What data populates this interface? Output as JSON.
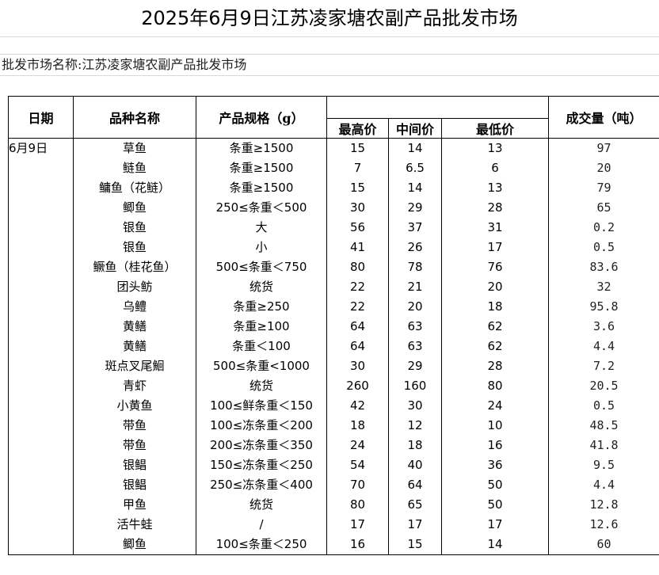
{
  "title": "2025年6月9日江苏凌家塘农副产品批发市场",
  "market_label": "批发市场名称:江苏凌家塘农副产品批发市场",
  "headers": {
    "date": "日期",
    "variety": "品种名称",
    "spec": "产品规格（g）",
    "high": "最高价",
    "mid": "中间价",
    "low": "最低价",
    "volume": "成交量（吨）"
  },
  "rows": [
    {
      "date": "6月9日",
      "name": "草鱼",
      "spec": "条重≥1500",
      "high": "15",
      "mid": "14",
      "low": "13",
      "volume": "97"
    },
    {
      "date": "",
      "name": "鲢鱼",
      "spec": "条重≥1500",
      "high": "7",
      "mid": "6.5",
      "low": "6",
      "volume": "20"
    },
    {
      "date": "",
      "name": "鳙鱼（花鲢）",
      "spec": "条重≥1500",
      "high": "15",
      "mid": "14",
      "low": "13",
      "volume": "79"
    },
    {
      "date": "",
      "name": "鲫鱼",
      "spec": "250≤条重＜500",
      "high": "30",
      "mid": "29",
      "low": "28",
      "volume": "65"
    },
    {
      "date": "",
      "name": "银鱼",
      "spec": "大",
      "high": "56",
      "mid": "37",
      "low": "31",
      "volume": "0.2"
    },
    {
      "date": "",
      "name": "银鱼",
      "spec": "小",
      "high": "41",
      "mid": "26",
      "low": "17",
      "volume": "0.5"
    },
    {
      "date": "",
      "name": "鳜鱼（桂花鱼）",
      "spec": "500≤条重＜750",
      "high": "80",
      "mid": "78",
      "low": "76",
      "volume": "83.6"
    },
    {
      "date": "",
      "name": "团头鲂",
      "spec": "统货",
      "high": "22",
      "mid": "21",
      "low": "20",
      "volume": "32"
    },
    {
      "date": "",
      "name": "乌鳢",
      "spec": "条重≥250",
      "high": "22",
      "mid": "20",
      "low": "18",
      "volume": "95.8"
    },
    {
      "date": "",
      "name": "黄鳝",
      "spec": "条重≥100",
      "high": "64",
      "mid": "63",
      "low": "62",
      "volume": "3.6"
    },
    {
      "date": "",
      "name": "黄鳝",
      "spec": "条重＜100",
      "high": "64",
      "mid": "63",
      "low": "62",
      "volume": "4.4"
    },
    {
      "date": "",
      "name": "斑点叉尾鮰",
      "spec": "500≤条重<1000",
      "high": "30",
      "mid": "29",
      "low": "28",
      "volume": "7.2"
    },
    {
      "date": "",
      "name": "青虾",
      "spec": "统货",
      "high": "260",
      "mid": "160",
      "low": "80",
      "volume": "20.5"
    },
    {
      "date": "",
      "name": "小黄鱼",
      "spec": "100≤鲜条重＜150",
      "high": "42",
      "mid": "30",
      "low": "24",
      "volume": "0.5"
    },
    {
      "date": "",
      "name": "带鱼",
      "spec": "100≤冻条重＜200",
      "high": "18",
      "mid": "12",
      "low": "10",
      "volume": "48.5"
    },
    {
      "date": "",
      "name": "带鱼",
      "spec": "200≤冻条重＜350",
      "high": "24",
      "mid": "18",
      "low": "16",
      "volume": "41.8"
    },
    {
      "date": "",
      "name": "银鲳",
      "spec": "150≤冻条重＜250",
      "high": "54",
      "mid": "40",
      "low": "36",
      "volume": "9.5"
    },
    {
      "date": "",
      "name": "银鲳",
      "spec": "250≤冻条重＜400",
      "high": "70",
      "mid": "64",
      "low": "50",
      "volume": "4.4"
    },
    {
      "date": "",
      "name": "甲鱼",
      "spec": "统货",
      "high": "80",
      "mid": "65",
      "low": "50",
      "volume": "12.8"
    },
    {
      "date": "",
      "name": "活牛蛙",
      "spec": "/",
      "high": "17",
      "mid": "17",
      "low": "17",
      "volume": "12.6"
    },
    {
      "date": "",
      "name": "鲫鱼",
      "spec": "100≤条重＜250",
      "high": "16",
      "mid": "15",
      "low": "14",
      "volume": "60"
    }
  ]
}
